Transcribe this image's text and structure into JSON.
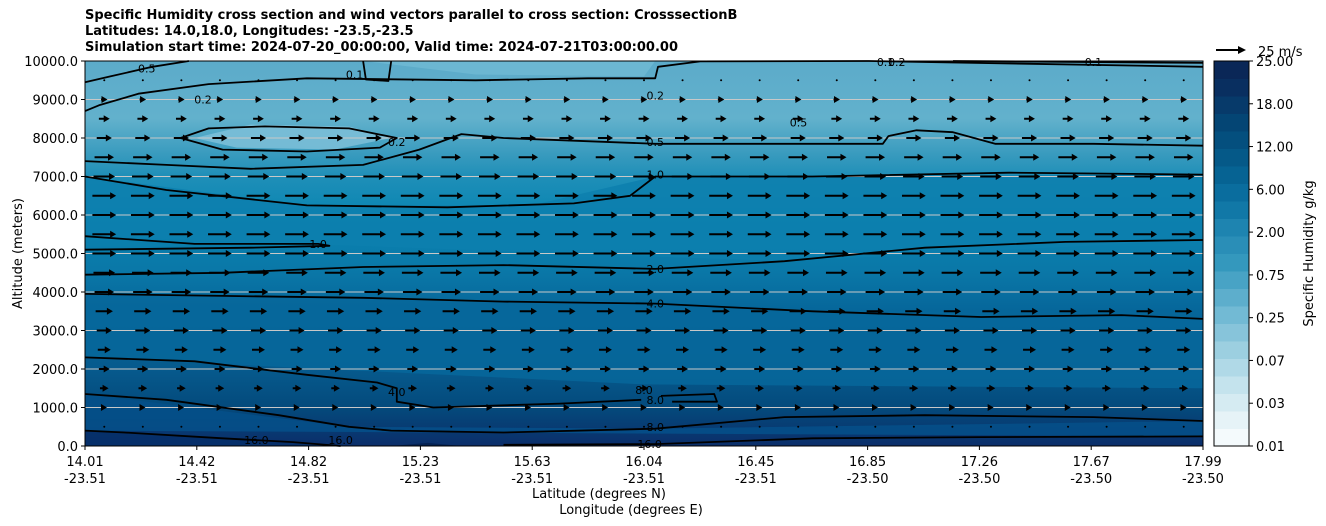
{
  "titles": {
    "line1": "Specific Humidity cross section and wind vectors parallel to cross section: CrosssectionB",
    "line2": "Latitudes: 14.0,18.0, Longitudes: -23.5,-23.5",
    "line3": "Simulation start time: 2024-07-20_00:00:00, Valid time: 2024-07-21T03:00:00.00"
  },
  "chart_data": {
    "type": "heatmap",
    "subtype": "filled contour cross-section with contour lines and wind vectors",
    "ylabel": "Altitude (meters)",
    "xlabel_line1": "Latitude (degrees N)",
    "xlabel_line2": "Longitude (degrees E)",
    "ylim": [
      0,
      10000
    ],
    "yticks": [
      "0.0",
      "1000.0",
      "2000.0",
      "3000.0",
      "4000.0",
      "5000.0",
      "6000.0",
      "7000.0",
      "8000.0",
      "9000.0",
      "10000.0"
    ],
    "ytick_values": [
      0,
      1000,
      2000,
      3000,
      4000,
      5000,
      6000,
      7000,
      8000,
      9000,
      10000
    ],
    "xticks": [
      {
        "lat": "14.01",
        "lon": "-23.51"
      },
      {
        "lat": "14.42",
        "lon": "-23.51"
      },
      {
        "lat": "14.82",
        "lon": "-23.51"
      },
      {
        "lat": "15.23",
        "lon": "-23.51"
      },
      {
        "lat": "15.63",
        "lon": "-23.51"
      },
      {
        "lat": "16.04",
        "lon": "-23.51"
      },
      {
        "lat": "16.45",
        "lon": "-23.51"
      },
      {
        "lat": "16.85",
        "lon": "-23.50"
      },
      {
        "lat": "17.26",
        "lon": "-23.50"
      },
      {
        "lat": "17.67",
        "lon": "-23.50"
      },
      {
        "lat": "17.99",
        "lon": "-23.50"
      }
    ],
    "xlim": [
      14.01,
      17.99
    ],
    "colorbar": {
      "label": "Specific Humidity g/kg",
      "levels": [
        "0.01",
        "0.03",
        "0.07",
        "0.25",
        "0.75",
        "2.00",
        "6.00",
        "12.00",
        "18.00",
        "25.00"
      ],
      "level_values": [
        0.01,
        0.03,
        0.07,
        0.25,
        0.75,
        2.0,
        6.0,
        12.0,
        18.0,
        25.0
      ]
    },
    "quiver_key": "25 m/s",
    "grid": "horizontal",
    "contour_levels": [
      0.1,
      0.2,
      0.5,
      1.0,
      2.0,
      4.0,
      8.0,
      16.0
    ],
    "contour_labels": [
      {
        "text": "0.1",
        "lat": 16.86,
        "alt": 9980
      },
      {
        "text": "0.2",
        "lat": 16.9,
        "alt": 9980
      },
      {
        "text": "0.1",
        "lat": 17.6,
        "alt": 9980
      },
      {
        "text": "0.5",
        "lat": 14.23,
        "alt": 9800
      },
      {
        "text": "0.1",
        "lat": 14.97,
        "alt": 9650
      },
      {
        "text": "0.2",
        "lat": 14.43,
        "alt": 9000
      },
      {
        "text": "0.2",
        "lat": 16.04,
        "alt": 9100
      },
      {
        "text": "0.5",
        "lat": 16.55,
        "alt": 8400
      },
      {
        "text": "0.2",
        "lat": 15.12,
        "alt": 7900
      },
      {
        "text": "0.5",
        "lat": 16.04,
        "alt": 7900
      },
      {
        "text": "1.0",
        "lat": 16.04,
        "alt": 7050
      },
      {
        "text": "1.0",
        "lat": 14.84,
        "alt": 5250
      },
      {
        "text": "2.0",
        "lat": 16.04,
        "alt": 4600
      },
      {
        "text": "4.0",
        "lat": 16.04,
        "alt": 3700
      },
      {
        "text": "4.0",
        "lat": 15.12,
        "alt": 1400
      },
      {
        "text": "8.0",
        "lat": 16.0,
        "alt": 1450
      },
      {
        "text": "8.0",
        "lat": 16.04,
        "alt": 1200
      },
      {
        "text": "8.0",
        "lat": 16.04,
        "alt": 500
      },
      {
        "text": "16.0",
        "lat": 14.62,
        "alt": 150
      },
      {
        "text": "16.0",
        "lat": 14.92,
        "alt": 150
      },
      {
        "text": "16.0",
        "lat": 16.02,
        "alt": 50
      }
    ],
    "contour_lines": [
      {
        "level": 0.1,
        "points": [
          [
            15.0,
            10000
          ],
          [
            15.01,
            9520
          ],
          [
            15.09,
            9480
          ],
          [
            15.1,
            10000
          ]
        ]
      },
      {
        "level": 0.1,
        "points": [
          [
            17.1,
            10000
          ],
          [
            17.5,
            9980
          ],
          [
            17.99,
            9950
          ]
        ]
      },
      {
        "level": 0.5,
        "points": [
          [
            14.01,
            9450
          ],
          [
            14.1,
            9600
          ],
          [
            14.25,
            9850
          ],
          [
            14.38,
            10000
          ]
        ]
      },
      {
        "level": 0.2,
        "points": [
          [
            14.01,
            8700
          ],
          [
            14.06,
            8850
          ],
          [
            14.2,
            9150
          ],
          [
            14.45,
            9400
          ],
          [
            14.8,
            9550
          ],
          [
            15.4,
            9500
          ],
          [
            15.8,
            9550
          ],
          [
            16.04,
            9550
          ],
          [
            16.05,
            9850
          ],
          [
            16.2,
            9990
          ],
          [
            16.8,
            10000
          ],
          [
            17.99,
            9850
          ]
        ]
      },
      {
        "level": 0.2,
        "points": [
          [
            14.35,
            8000
          ],
          [
            14.45,
            8250
          ],
          [
            14.65,
            8300
          ],
          [
            14.95,
            8250
          ],
          [
            15.12,
            8000
          ],
          [
            15.06,
            7750
          ],
          [
            14.8,
            7650
          ],
          [
            14.5,
            7700
          ],
          [
            14.35,
            8000
          ]
        ]
      },
      {
        "level": 0.5,
        "points": [
          [
            14.01,
            7400
          ],
          [
            14.3,
            7300
          ],
          [
            14.6,
            7200
          ],
          [
            15.0,
            7300
          ],
          [
            15.2,
            7700
          ],
          [
            15.35,
            8100
          ],
          [
            15.5,
            8000
          ],
          [
            16.04,
            7850
          ],
          [
            16.5,
            7850
          ],
          [
            16.85,
            7850
          ],
          [
            16.87,
            8050
          ],
          [
            16.97,
            8200
          ],
          [
            17.1,
            8150
          ],
          [
            17.25,
            7850
          ],
          [
            17.6,
            7850
          ],
          [
            17.99,
            7800
          ]
        ]
      },
      {
        "level": 1.0,
        "points": [
          [
            14.01,
            7000
          ],
          [
            14.3,
            6650
          ],
          [
            14.8,
            6250
          ],
          [
            15.3,
            6200
          ],
          [
            15.75,
            6300
          ],
          [
            15.95,
            6500
          ],
          [
            16.04,
            7000
          ],
          [
            16.6,
            7000
          ],
          [
            17.3,
            7100
          ],
          [
            17.99,
            7050
          ]
        ]
      },
      {
        "level": 1.0,
        "points": [
          [
            14.01,
            5450
          ],
          [
            14.4,
            5250
          ],
          [
            14.84,
            5250
          ],
          [
            14.88,
            5200
          ],
          [
            14.6,
            5150
          ],
          [
            14.01,
            5100
          ]
        ]
      },
      {
        "level": 2.0,
        "points": [
          [
            14.01,
            4450
          ],
          [
            14.5,
            4500
          ],
          [
            15.0,
            4650
          ],
          [
            15.5,
            4700
          ],
          [
            16.04,
            4600
          ],
          [
            16.5,
            4800
          ],
          [
            17.0,
            5150
          ],
          [
            17.5,
            5300
          ],
          [
            17.99,
            5350
          ]
        ]
      },
      {
        "level": 4.0,
        "points": [
          [
            14.01,
            3950
          ],
          [
            14.5,
            3900
          ],
          [
            15.0,
            3850
          ],
          [
            15.5,
            3750
          ],
          [
            16.04,
            3700
          ],
          [
            16.6,
            3500
          ],
          [
            17.2,
            3350
          ],
          [
            17.7,
            3400
          ],
          [
            17.99,
            3300
          ]
        ]
      },
      {
        "level": 4.0,
        "points": [
          [
            14.01,
            2300
          ],
          [
            14.4,
            2200
          ],
          [
            14.8,
            1850
          ],
          [
            15.05,
            1650
          ],
          [
            15.12,
            1500
          ],
          [
            15.12,
            1150
          ],
          [
            15.25,
            1000
          ],
          [
            15.7,
            1100
          ],
          [
            15.99,
            1200
          ]
        ]
      },
      {
        "level": 8.0,
        "points": [
          [
            14.01,
            1350
          ],
          [
            14.3,
            1200
          ],
          [
            14.7,
            800
          ],
          [
            14.95,
            500
          ],
          [
            15.1,
            400
          ],
          [
            15.5,
            350
          ],
          [
            16.04,
            450
          ],
          [
            16.5,
            750
          ],
          [
            17.0,
            800
          ],
          [
            17.6,
            750
          ],
          [
            17.99,
            650
          ]
        ]
      },
      {
        "level": 8.0,
        "points": [
          [
            16.06,
            1300
          ],
          [
            16.25,
            1350
          ],
          [
            16.26,
            1150
          ],
          [
            16.1,
            1150
          ]
        ]
      },
      {
        "level": 16.0,
        "points": [
          [
            14.01,
            400
          ],
          [
            14.15,
            350
          ],
          [
            14.5,
            200
          ],
          [
            14.75,
            100
          ],
          [
            14.92,
            0
          ]
        ]
      },
      {
        "level": 16.0,
        "points": [
          [
            15.5,
            30
          ],
          [
            16.04,
            50
          ],
          [
            16.6,
            200
          ],
          [
            17.2,
            230
          ],
          [
            17.99,
            250
          ]
        ]
      }
    ],
    "wind_vectors": {
      "description": "Arrows parallel to the cross section, pointing in +x direction; length increases with altitude up to ~7000 m and decreases toward the top and toward the surface.",
      "rows_alt": [
        500,
        1000,
        1500,
        2000,
        2500,
        3000,
        3500,
        4000,
        4500,
        5000,
        5500,
        6000,
        6500,
        7000,
        7500,
        8000,
        8500,
        9000,
        9500
      ],
      "speed_by_row_ms": [
        3,
        5,
        8,
        10,
        12,
        14,
        16,
        18,
        20,
        22,
        22,
        22,
        22,
        20,
        18,
        14,
        10,
        6,
        2
      ],
      "columns": 29
    }
  }
}
